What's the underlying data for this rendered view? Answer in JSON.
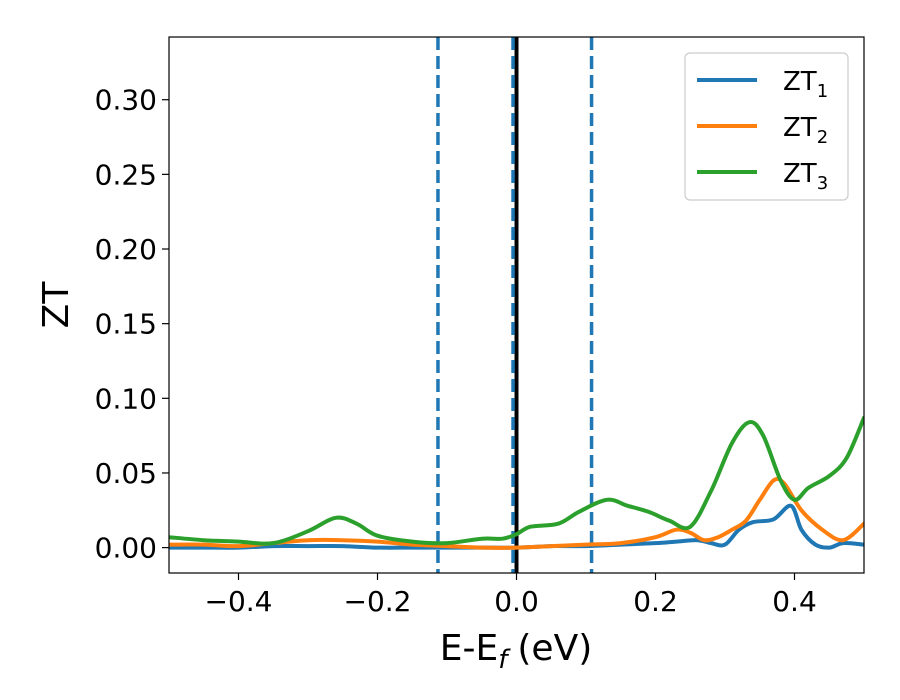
{
  "chart_data": {
    "type": "line",
    "title": "",
    "xlabel_main": "E-E",
    "xlabel_sub": "f",
    "xlabel_unit": "(eV)",
    "ylabel": "ZT",
    "xlim": [
      -0.5,
      0.5
    ],
    "ylim": [
      -0.017,
      0.342
    ],
    "xticks": [
      -0.4,
      -0.2,
      0.0,
      0.2,
      0.4
    ],
    "xtick_labels": [
      "−0.4",
      "−0.2",
      "0.0",
      "0.2",
      "0.4"
    ],
    "yticks": [
      0.0,
      0.05,
      0.1,
      0.15,
      0.2,
      0.25,
      0.3
    ],
    "ytick_labels": [
      "0.00",
      "0.05",
      "0.10",
      "0.15",
      "0.20",
      "0.25",
      "0.30"
    ],
    "grid": false,
    "legend_position": "top-right",
    "vlines": [
      {
        "x": 0.0,
        "style": "solid",
        "color": "#000000"
      },
      {
        "x": -0.113,
        "style": "dashed",
        "color": "#1f77b4"
      },
      {
        "x": -0.005,
        "style": "dashed",
        "color": "#1f77b4"
      },
      {
        "x": 0.108,
        "style": "dashed",
        "color": "#1f77b4"
      }
    ],
    "series": [
      {
        "name": "ZT",
        "subscript": "1",
        "color": "#1f77b4",
        "points": [
          [
            -0.5,
            0.0
          ],
          [
            -0.45,
            0.0
          ],
          [
            -0.4,
            0.0
          ],
          [
            -0.35,
            0.001
          ],
          [
            -0.3,
            0.001
          ],
          [
            -0.25,
            0.001
          ],
          [
            -0.2,
            0.0
          ],
          [
            -0.15,
            0.0
          ],
          [
            -0.1,
            0.0
          ],
          [
            -0.05,
            0.0
          ],
          [
            0.0,
            0.0
          ],
          [
            0.05,
            0.001
          ],
          [
            0.1,
            0.001
          ],
          [
            0.15,
            0.002
          ],
          [
            0.2,
            0.003
          ],
          [
            0.23,
            0.004
          ],
          [
            0.26,
            0.005
          ],
          [
            0.28,
            0.003
          ],
          [
            0.3,
            0.002
          ],
          [
            0.32,
            0.012
          ],
          [
            0.34,
            0.017
          ],
          [
            0.37,
            0.019
          ],
          [
            0.395,
            0.028
          ],
          [
            0.41,
            0.012
          ],
          [
            0.43,
            0.002
          ],
          [
            0.45,
            0.0
          ],
          [
            0.47,
            0.003
          ],
          [
            0.5,
            0.002
          ]
        ]
      },
      {
        "name": "ZT",
        "subscript": "2",
        "color": "#ff7f0e",
        "points": [
          [
            -0.5,
            0.002
          ],
          [
            -0.45,
            0.002
          ],
          [
            -0.4,
            0.001
          ],
          [
            -0.35,
            0.003
          ],
          [
            -0.3,
            0.005
          ],
          [
            -0.25,
            0.005
          ],
          [
            -0.2,
            0.004
          ],
          [
            -0.15,
            0.002
          ],
          [
            -0.1,
            0.001
          ],
          [
            -0.05,
            0.0
          ],
          [
            0.0,
            0.0
          ],
          [
            0.05,
            0.001
          ],
          [
            0.1,
            0.002
          ],
          [
            0.15,
            0.003
          ],
          [
            0.2,
            0.007
          ],
          [
            0.23,
            0.012
          ],
          [
            0.25,
            0.01
          ],
          [
            0.27,
            0.005
          ],
          [
            0.29,
            0.007
          ],
          [
            0.31,
            0.012
          ],
          [
            0.33,
            0.018
          ],
          [
            0.35,
            0.032
          ],
          [
            0.37,
            0.045
          ],
          [
            0.385,
            0.043
          ],
          [
            0.41,
            0.025
          ],
          [
            0.44,
            0.012
          ],
          [
            0.47,
            0.005
          ],
          [
            0.5,
            0.016
          ]
        ]
      },
      {
        "name": "ZT",
        "subscript": "3",
        "color": "#2ca02c",
        "points": [
          [
            -0.5,
            0.007
          ],
          [
            -0.45,
            0.005
          ],
          [
            -0.4,
            0.004
          ],
          [
            -0.35,
            0.003
          ],
          [
            -0.3,
            0.011
          ],
          [
            -0.26,
            0.02
          ],
          [
            -0.23,
            0.016
          ],
          [
            -0.2,
            0.008
          ],
          [
            -0.15,
            0.004
          ],
          [
            -0.1,
            0.003
          ],
          [
            -0.05,
            0.006
          ],
          [
            -0.02,
            0.006
          ],
          [
            0.0,
            0.009
          ],
          [
            0.02,
            0.014
          ],
          [
            0.06,
            0.016
          ],
          [
            0.09,
            0.024
          ],
          [
            0.13,
            0.032
          ],
          [
            0.16,
            0.028
          ],
          [
            0.19,
            0.024
          ],
          [
            0.22,
            0.018
          ],
          [
            0.25,
            0.014
          ],
          [
            0.28,
            0.038
          ],
          [
            0.31,
            0.07
          ],
          [
            0.335,
            0.084
          ],
          [
            0.355,
            0.075
          ],
          [
            0.38,
            0.045
          ],
          [
            0.4,
            0.032
          ],
          [
            0.42,
            0.04
          ],
          [
            0.45,
            0.048
          ],
          [
            0.475,
            0.06
          ],
          [
            0.5,
            0.087
          ]
        ]
      }
    ]
  }
}
